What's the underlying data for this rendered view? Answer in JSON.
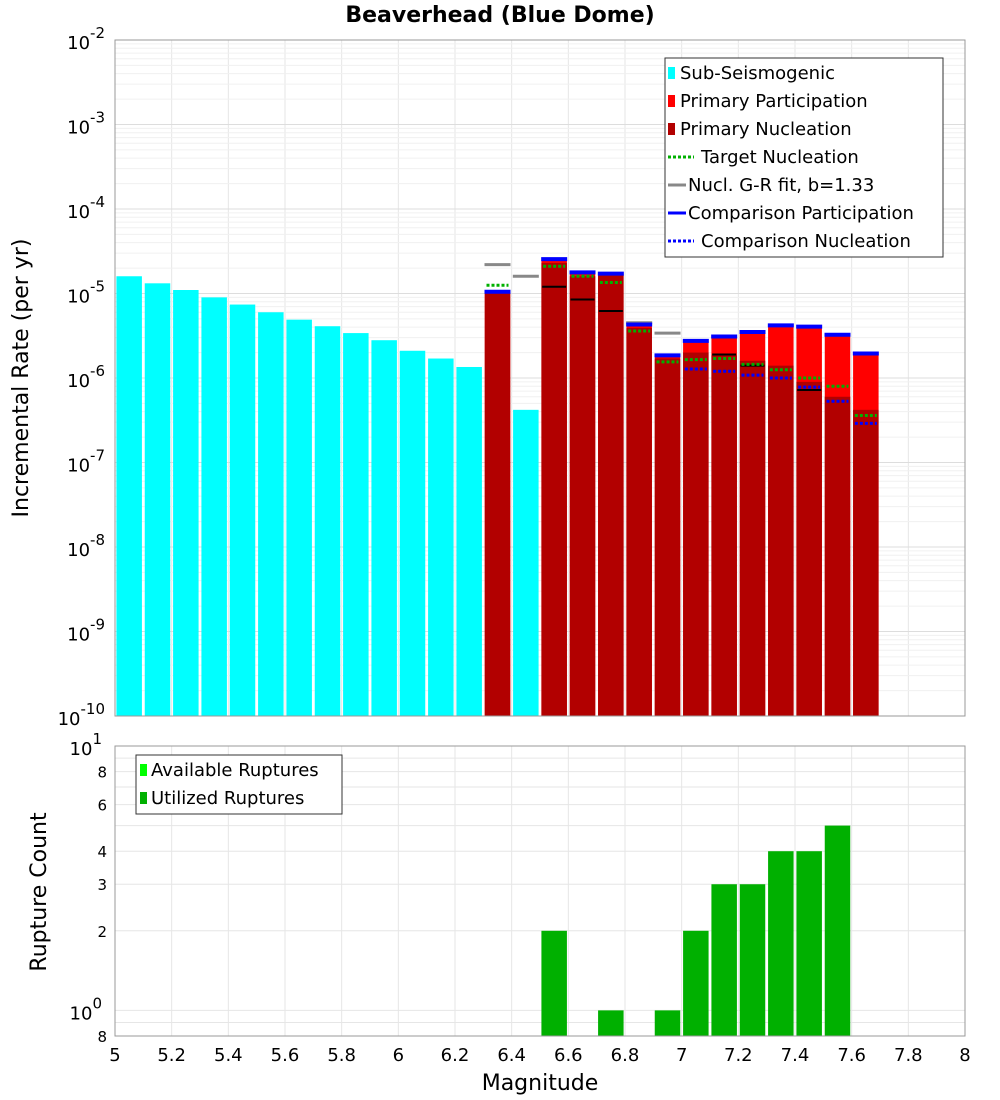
{
  "chart_data": [
    {
      "type": "bar",
      "title": "Beaverhead (Blue Dome)",
      "xlabel": "Magnitude",
      "ylabel": "Incremental Rate (per yr)",
      "yscale": "log",
      "xlim": [
        5,
        8
      ],
      "ylim": [
        1e-10,
        0.01
      ],
      "grid": true,
      "legend_position": "top-right",
      "y_ticks": [
        {
          "base": "10",
          "exp": "-2",
          "value": 0.01
        },
        {
          "base": "10",
          "exp": "-3",
          "value": 0.001
        },
        {
          "base": "10",
          "exp": "-4",
          "value": 0.0001
        },
        {
          "base": "10",
          "exp": "-5",
          "value": 1e-05
        },
        {
          "base": "10",
          "exp": "-6",
          "value": 1e-06
        },
        {
          "base": "10",
          "exp": "-7",
          "value": 1e-07
        },
        {
          "base": "10",
          "exp": "-8",
          "value": 1e-08
        },
        {
          "base": "10",
          "exp": "-9",
          "value": 1e-09
        },
        {
          "base": "10",
          "exp": "-10",
          "value": 1e-10
        }
      ],
      "legend": [
        {
          "label": "Sub-Seismogenic",
          "color": "#00ffff",
          "style": "bar"
        },
        {
          "label": "Primary Participation",
          "color": "#ff0000",
          "style": "bar"
        },
        {
          "label": "Primary Nucleation",
          "color": "#b20000",
          "style": "bar"
        },
        {
          "label": "Target Nucleation",
          "color": "#00b000",
          "style": "dotted"
        },
        {
          "label": "Nucl. G-R fit, b=1.33",
          "color": "#888888",
          "style": "solid"
        },
        {
          "label": "Comparison Participation",
          "color": "#0000ff",
          "style": "solid"
        },
        {
          "label": "Comparison Nucleation",
          "color": "#0000ff",
          "style": "dotted"
        }
      ],
      "series": [
        {
          "name": "Sub-Seismogenic",
          "color": "#00ffff",
          "x": [
            5.05,
            5.15,
            5.25,
            5.35,
            5.45,
            5.55,
            5.65,
            5.75,
            5.85,
            5.95,
            6.05,
            6.15,
            6.25,
            6.45
          ],
          "values": [
            1.6e-05,
            1.32e-05,
            1.1e-05,
            9e-06,
            7.4e-06,
            6e-06,
            4.9e-06,
            4.1e-06,
            3.4e-06,
            2.8e-06,
            2.1e-06,
            1.7e-06,
            1.35e-06,
            4.2e-07
          ]
        },
        {
          "name": "Primary Participation",
          "color": "#ff0000",
          "x": [
            6.35,
            6.55,
            6.65,
            6.75,
            6.85,
            6.95,
            7.05,
            7.15,
            7.25,
            7.35,
            7.45,
            7.55,
            7.65
          ],
          "values": [
            1.05e-05,
            2.5e-05,
            1.75e-05,
            1.7e-05,
            4.3e-06,
            1.85e-06,
            2.7e-06,
            3.1e-06,
            3.5e-06,
            4.2e-06,
            4e-06,
            3.2e-06,
            1.9e-06
          ]
        },
        {
          "name": "Primary Nucleation",
          "color": "#b20000",
          "x": [
            6.35,
            6.55,
            6.65,
            6.75,
            6.85,
            6.95,
            7.05,
            7.15,
            7.25,
            7.35,
            7.45,
            7.55,
            7.65
          ],
          "values": [
            1e-05,
            2.3e-05,
            1.6e-05,
            1.65e-05,
            3.9e-06,
            1.7e-06,
            2e-06,
            1.85e-06,
            1.6e-06,
            1.4e-06,
            9e-07,
            6e-07,
            4.2e-07
          ]
        },
        {
          "name": "Target Nucleation",
          "color": "#00b000",
          "x": [
            6.35,
            6.55,
            6.65,
            6.75,
            6.85,
            6.95,
            7.05,
            7.15,
            7.25,
            7.35,
            7.45,
            7.55,
            7.65
          ],
          "values": [
            1.25e-05,
            2.1e-05,
            1.6e-05,
            1.35e-05,
            3.6e-06,
            1.55e-06,
            1.65e-06,
            1.7e-06,
            1.45e-06,
            1.25e-06,
            1e-06,
            8e-07,
            3.6e-07
          ]
        },
        {
          "name": "Nucl. G-R fit, b=1.33",
          "color": "#888888",
          "x": [
            6.35,
            6.45,
            6.85,
            6.95
          ],
          "values": [
            2.2e-05,
            1.6e-05,
            4.5e-06,
            3.4e-06
          ]
        },
        {
          "name": "Comparison Participation",
          "color": "#0000ff",
          "x": [
            6.35,
            6.55,
            6.65,
            6.75,
            6.85,
            6.95,
            7.05,
            7.15,
            7.25,
            7.35,
            7.45,
            7.55,
            7.65
          ],
          "values": [
            1.05e-05,
            2.55e-05,
            1.78e-05,
            1.72e-05,
            4.3e-06,
            1.85e-06,
            2.75e-06,
            3.1e-06,
            3.5e-06,
            4.2e-06,
            4.05e-06,
            3.25e-06,
            1.95e-06
          ]
        },
        {
          "name": "Comparison Nucleation",
          "color": "#0000ff",
          "x": [
            7.05,
            7.15,
            7.25,
            7.35,
            7.45,
            7.55,
            7.65
          ],
          "values": [
            1.28e-06,
            1.2e-06,
            1.08e-06,
            1e-06,
            7.8e-07,
            5.3e-07,
            2.9e-07
          ]
        },
        {
          "name": "Black Marker",
          "color": "#000000",
          "x": [
            6.55,
            6.65,
            6.75,
            7.15,
            7.25,
            7.45
          ],
          "values": [
            1.2e-05,
            8.5e-06,
            6.2e-06,
            1.9e-06,
            1.4e-06,
            7.2e-07
          ]
        }
      ]
    },
    {
      "type": "bar",
      "title": "",
      "xlabel": "Magnitude",
      "ylabel": "Rupture Count",
      "yscale": "log",
      "xlim": [
        5,
        8
      ],
      "ylim": [
        0.8,
        10
      ],
      "grid": true,
      "legend_position": "top-left",
      "x_ticks": [
        "5",
        "5.2",
        "5.4",
        "5.6",
        "5.8",
        "6",
        "6.2",
        "6.4",
        "6.6",
        "6.8",
        "7",
        "7.2",
        "7.4",
        "7.6",
        "7.8",
        "8"
      ],
      "y_major_ticks": [
        {
          "base": "10",
          "exp": "1",
          "value": 10
        },
        {
          "base": "10",
          "exp": "0",
          "value": 1
        }
      ],
      "y_minor_ticks": [
        {
          "label": "8",
          "value": 8
        },
        {
          "label": "6",
          "value": 6
        },
        {
          "label": "4",
          "value": 4
        },
        {
          "label": "3",
          "value": 3
        },
        {
          "label": "2",
          "value": 2
        },
        {
          "label": "8",
          "value": 0.8
        }
      ],
      "legend": [
        {
          "label": "Available Ruptures",
          "color": "#00ff00"
        },
        {
          "label": "Utilized Ruptures",
          "color": "#00b000"
        }
      ],
      "series": [
        {
          "name": "Utilized Ruptures",
          "color": "#00b000",
          "x": [
            6.55,
            6.75,
            6.95,
            7.05,
            7.15,
            7.25,
            7.35,
            7.45,
            7.55
          ],
          "values": [
            2,
            1,
            1,
            2,
            3,
            3,
            4,
            4,
            5
          ]
        }
      ]
    }
  ]
}
